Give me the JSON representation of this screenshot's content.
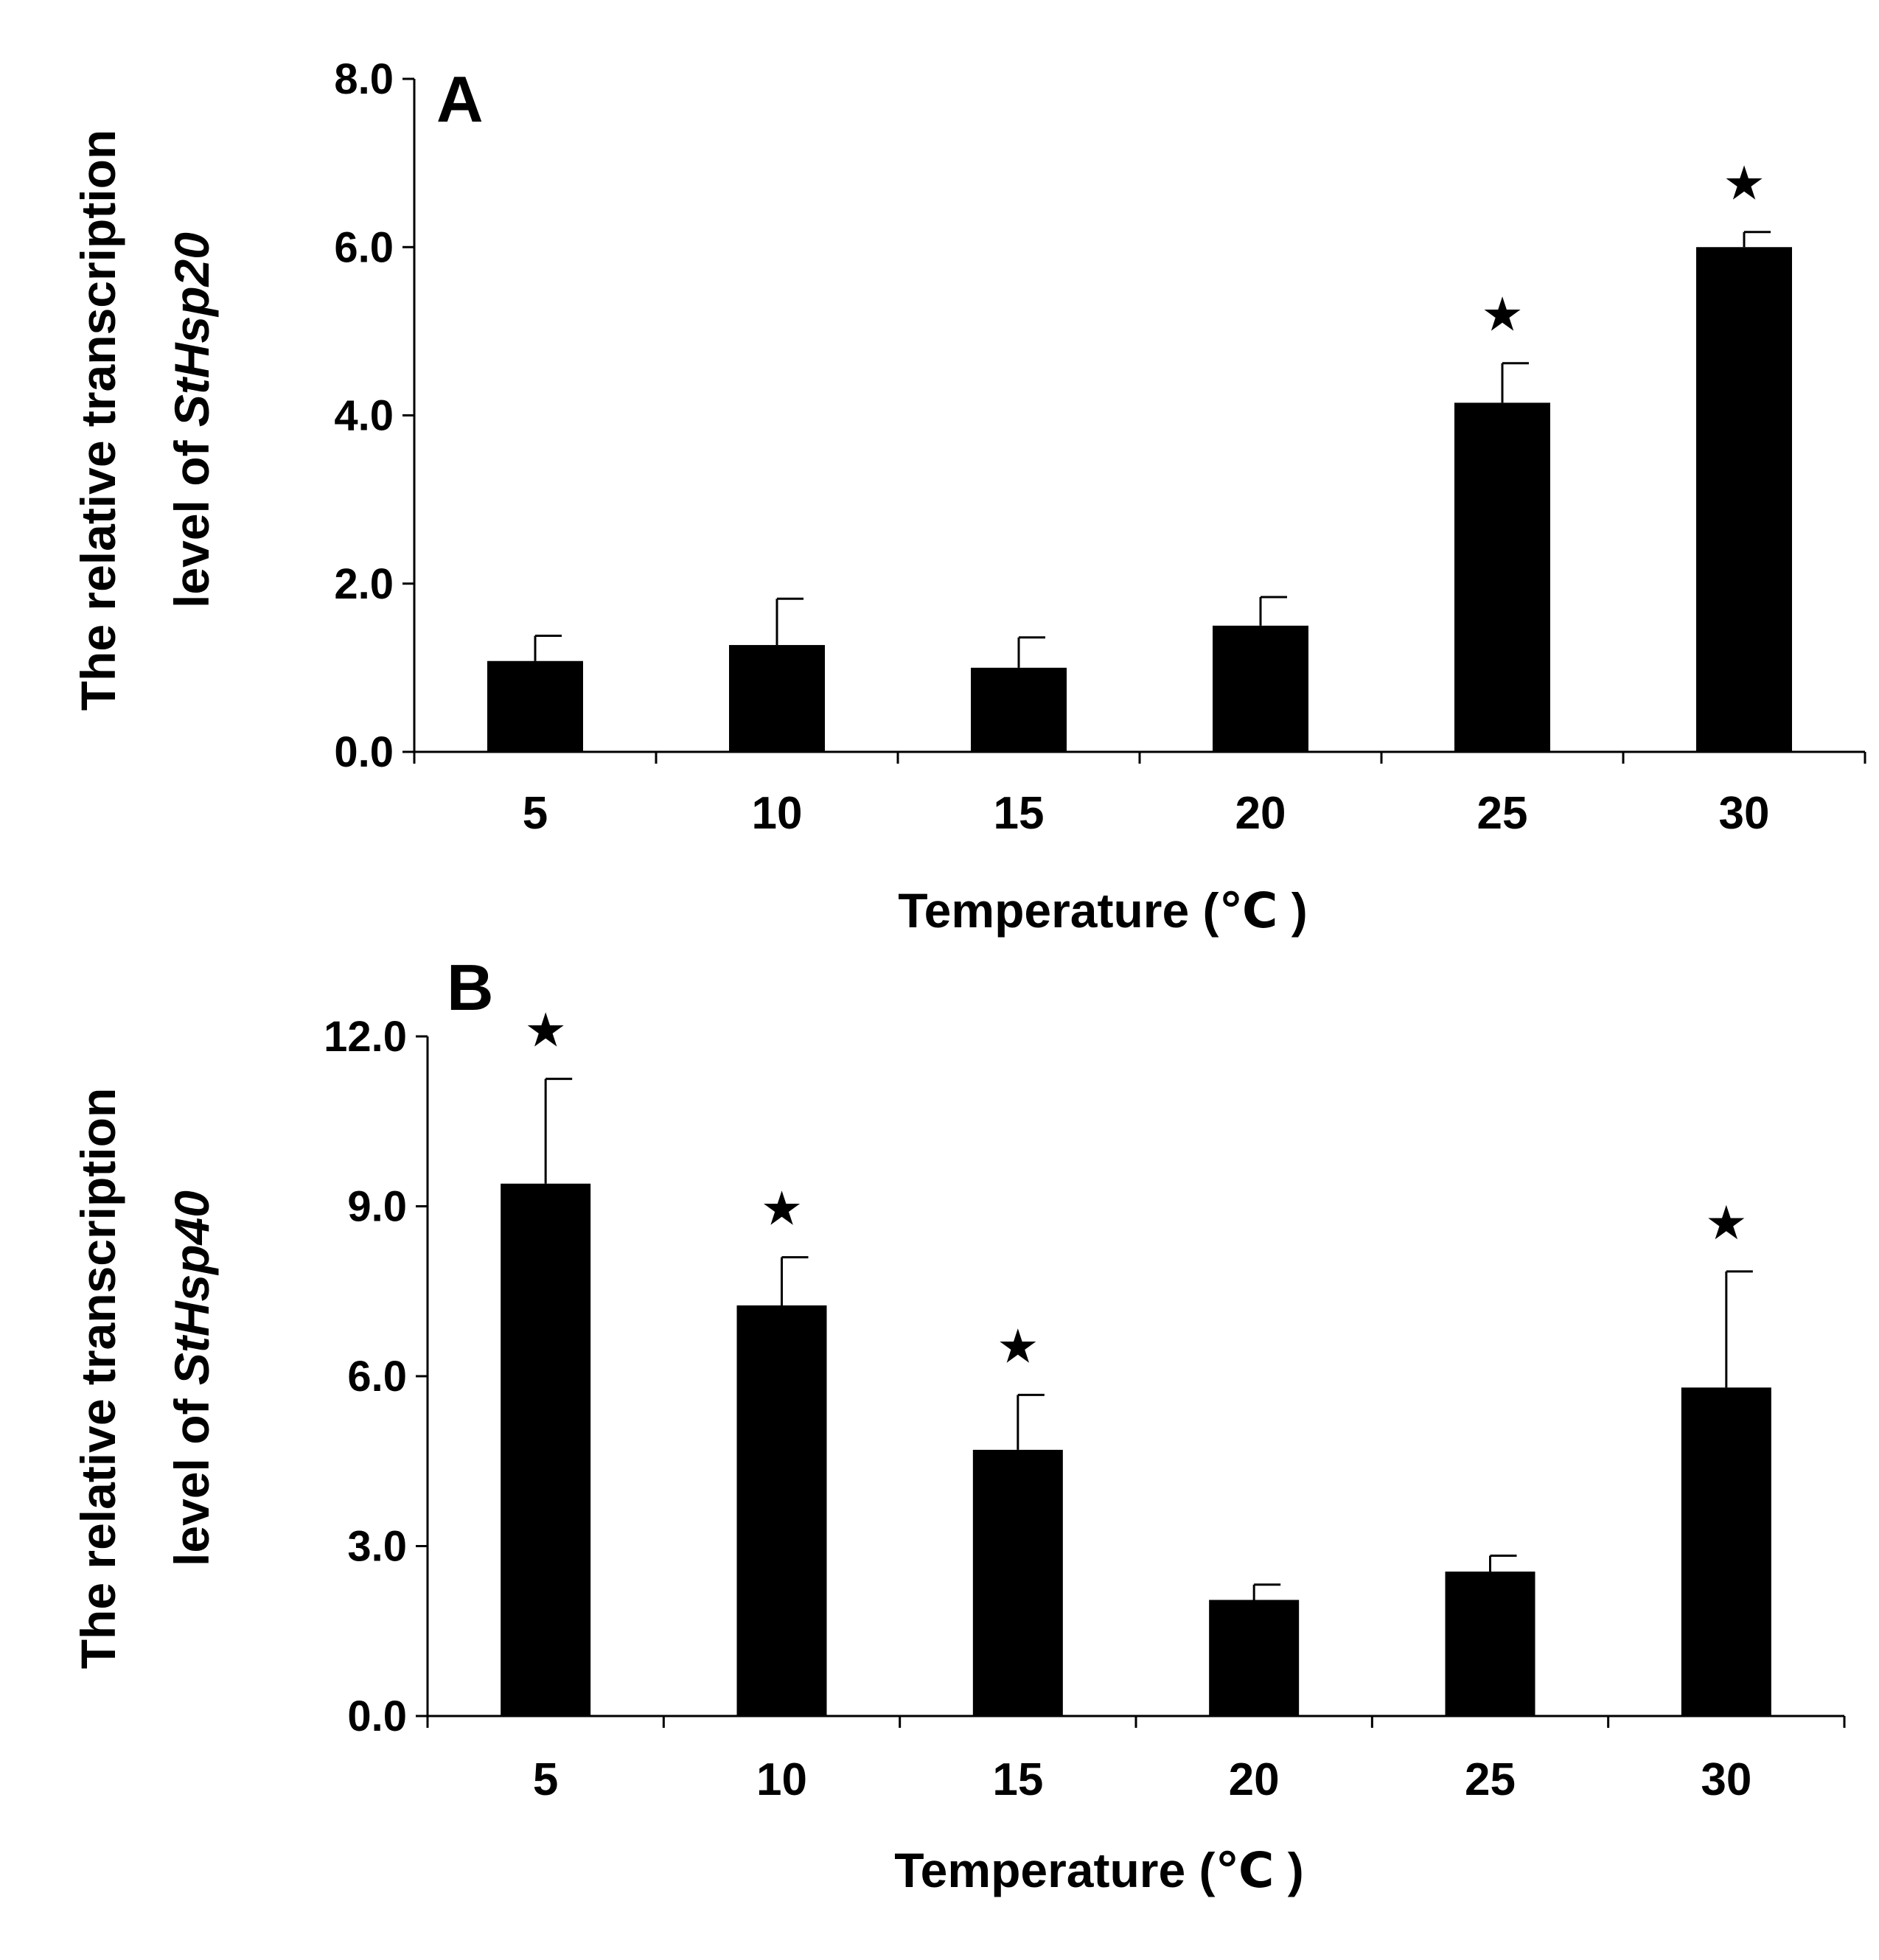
{
  "chart_data": [
    {
      "type": "bar",
      "panel": "A",
      "categories": [
        "5",
        "10",
        "15",
        "20",
        "25",
        "30"
      ],
      "values": [
        1.08,
        1.27,
        1.0,
        1.5,
        4.15,
        6.0
      ],
      "errors": [
        0.3,
        0.55,
        0.36,
        0.34,
        0.47,
        0.18
      ],
      "significant": [
        false,
        false,
        false,
        false,
        true,
        true
      ],
      "ylim": [
        0,
        8
      ],
      "yticks": [
        "0.0",
        "2.0",
        "4.0",
        "6.0",
        "8.0"
      ],
      "xlabel": "Temperature (℃ )",
      "ylabel_line1": "The relative transcription",
      "ylabel_line2_prefix": "level of ",
      "ylabel_gene": "StHsp20",
      "marker": "★"
    },
    {
      "type": "bar",
      "panel": "B",
      "categories": [
        "5",
        "10",
        "15",
        "20",
        "25",
        "30"
      ],
      "values": [
        9.4,
        7.25,
        4.7,
        2.05,
        2.55,
        5.8
      ],
      "errors": [
        1.85,
        0.85,
        0.97,
        0.27,
        0.28,
        2.05
      ],
      "significant": [
        true,
        true,
        true,
        false,
        false,
        true
      ],
      "ylim": [
        0,
        12
      ],
      "yticks": [
        "0.0",
        "3.0",
        "6.0",
        "9.0",
        "12.0"
      ],
      "xlabel": "Temperature (℃ )",
      "ylabel_line1": "The relative transcription",
      "ylabel_line2_prefix": "level of ",
      "ylabel_gene": "StHsp40",
      "marker": "★"
    }
  ]
}
